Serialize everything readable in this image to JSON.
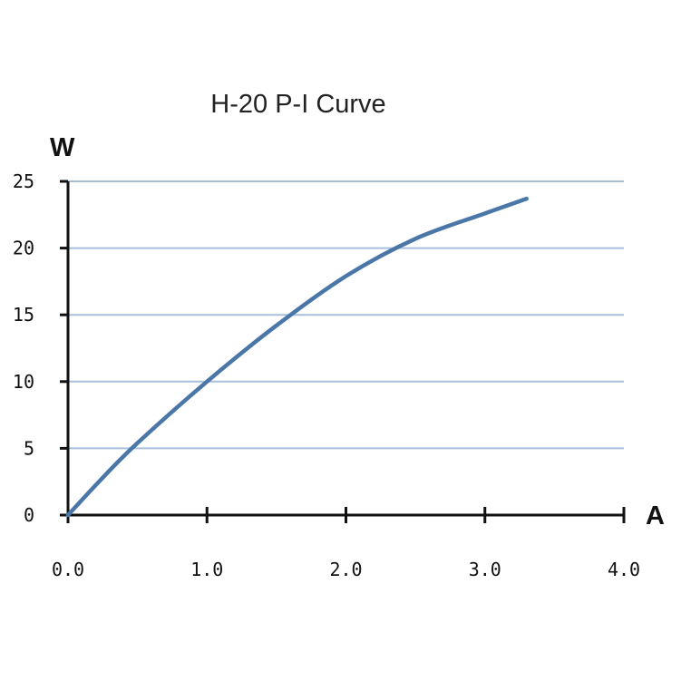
{
  "chart_data": {
    "type": "line",
    "title": "H-20 P-I Curve",
    "xlabel": "A",
    "ylabel": "W",
    "xlim": [
      0,
      4.0
    ],
    "ylim": [
      0,
      25
    ],
    "x_ticks": [
      "0.0",
      "1.0",
      "2.0",
      "3.0",
      "4.0"
    ],
    "y_ticks": [
      "0",
      "5",
      "10",
      "15",
      "20",
      "25"
    ],
    "grid": true,
    "series": [
      {
        "x": [
          0,
          0.25,
          0.5,
          1.0,
          1.5,
          2.0,
          2.5,
          3.0,
          3.3
        ],
        "values": [
          0,
          2.8,
          5.4,
          10.0,
          14.2,
          17.9,
          20.7,
          22.6,
          23.7
        ],
        "color": "#4a76a8"
      }
    ]
  }
}
